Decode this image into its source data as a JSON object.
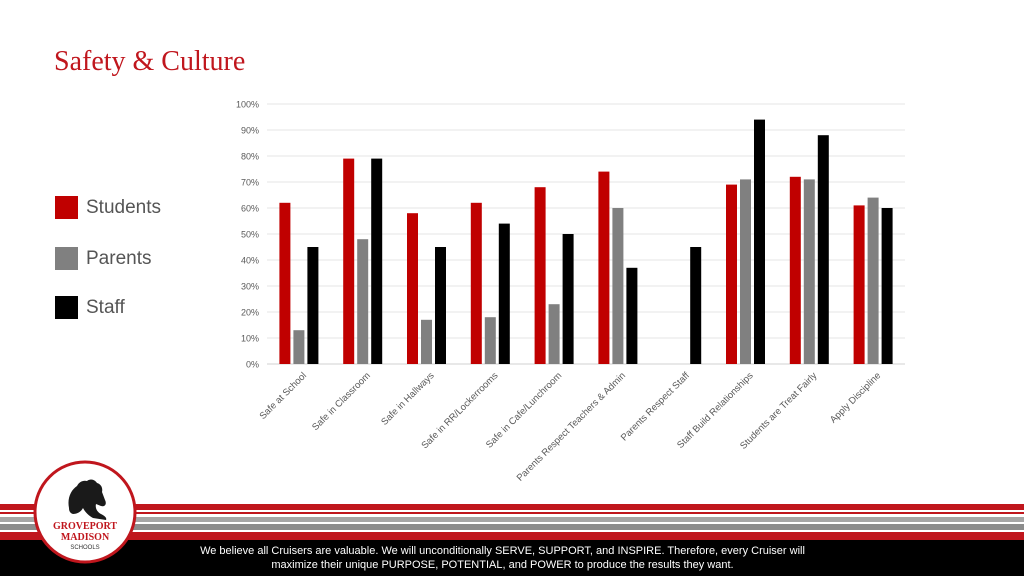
{
  "page": {
    "title": "Safety & Culture"
  },
  "legend": {
    "items": [
      {
        "label": "Students",
        "color": "#c00000"
      },
      {
        "label": "Parents",
        "color": "#808080"
      },
      {
        "label": "Staff",
        "color": "#000000"
      }
    ]
  },
  "chart_data": {
    "type": "bar",
    "categories": [
      "Safe at School",
      "Safe in Classroom",
      "Safe in Hallways",
      "Safe in RR/Lockerrooms",
      "Safe in Cafe/Lunchroom",
      "Parents Respect Teachers & Admin",
      "Parents Respect Staff",
      "Staff Build Relationships",
      "Students are Treat Fairly",
      "Apply Discipline"
    ],
    "series": [
      {
        "name": "Students",
        "color": "#c00000",
        "values": [
          62,
          79,
          58,
          62,
          68,
          74,
          null,
          69,
          72,
          61
        ]
      },
      {
        "name": "Parents",
        "color": "#808080",
        "values": [
          13,
          48,
          17,
          18,
          23,
          60,
          null,
          71,
          71,
          64
        ]
      },
      {
        "name": "Staff",
        "color": "#000000",
        "values": [
          45,
          79,
          45,
          54,
          50,
          37,
          45,
          94,
          88,
          60
        ]
      }
    ],
    "yticks": [
      "0%",
      "10%",
      "20%",
      "30%",
      "40%",
      "50%",
      "60%",
      "70%",
      "80%",
      "90%",
      "100%"
    ],
    "ylim": [
      0,
      100
    ],
    "grid": true,
    "legend_position": "left"
  },
  "logo": {
    "line1": "GROVEPORT",
    "line2": "MADISON",
    "line3": "SCHOOLS",
    "color": "#c0161d"
  },
  "footer": {
    "line1": "We believe all Cruisers are valuable. We will unconditionally SERVE, SUPPORT, and INSPIRE. Therefore, every Cruiser will",
    "line2": "maximize their unique PURPOSE, POTENTIAL, and POWER to produce the results they want."
  }
}
